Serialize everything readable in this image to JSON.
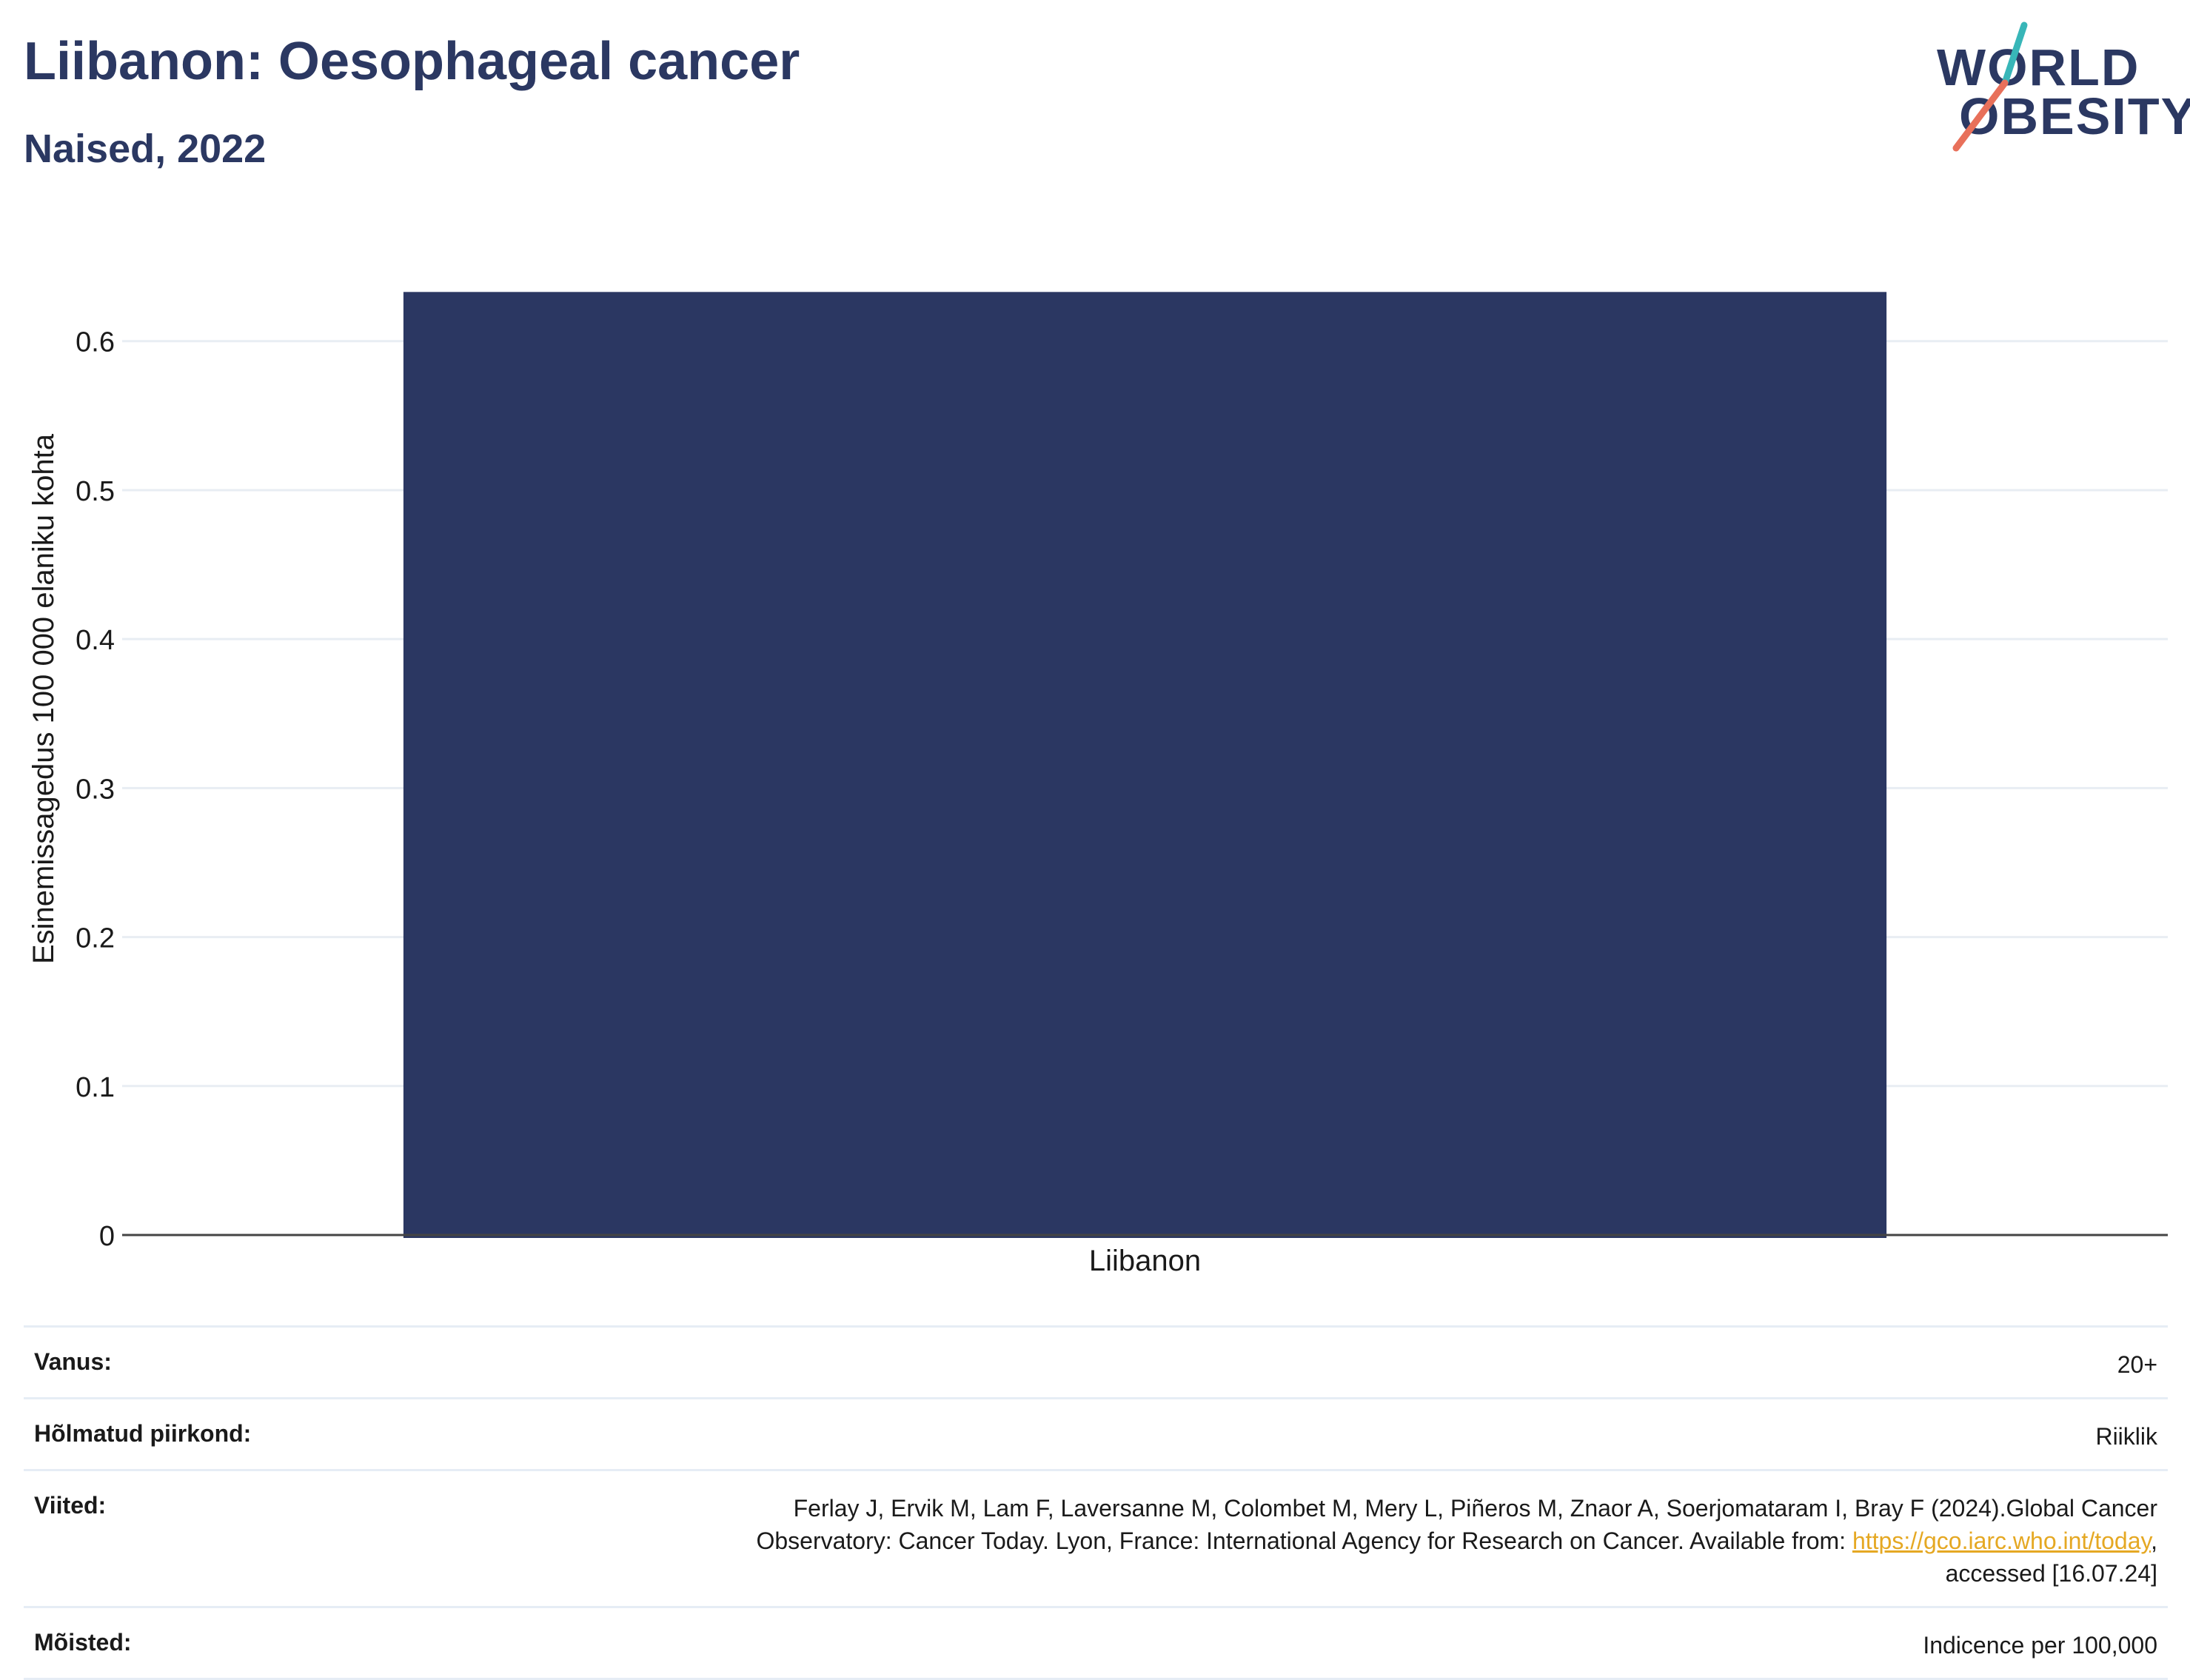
{
  "header": {
    "title": "Liibanon: Oesophageal cancer",
    "subtitle": "Naised, 2022"
  },
  "logo": {
    "line1": "WORLD",
    "line2": "OBESITY",
    "accent_colors": [
      "#38b6b8",
      "#e8705a"
    ]
  },
  "chart_data": {
    "type": "bar",
    "categories": [
      "Liibanon"
    ],
    "values": [
      0.633
    ],
    "ylabel": "Esinemissagedus 100 000 elaniku kohta",
    "xlabel": "",
    "ylim": [
      0,
      0.66
    ],
    "yticks": [
      0,
      0.1,
      0.2,
      0.3,
      0.4,
      0.5,
      0.6
    ],
    "ytick_labels": [
      "0",
      "0.1",
      "0.2",
      "0.3",
      "0.4",
      "0.5",
      "0.6"
    ],
    "grid": true,
    "bar_color": "#2b3762"
  },
  "footer": {
    "rows": [
      {
        "label": "Vanus:",
        "value": "20+"
      },
      {
        "label": "Hõlmatud piirkond:",
        "value": "Riiklik"
      },
      {
        "label": "Viited:",
        "value_line1": "Ferlay J, Ervik M, Lam F, Laversanne M, Colombet M, Mery L, Piñeros M, Znaor A, Soerjomataram I, Bray F (2024).Global Cancer",
        "value_line2_pre": "Observatory: Cancer Today. Lyon, France: International Agency for Research on Cancer. Available from: ",
        "link_text": "https://gco.iarc.who.int/today",
        "value_line2_post": ",",
        "value_line3": "accessed [16.07.24]"
      },
      {
        "label": "Mõisted:",
        "value": "Indicence per 100,000"
      }
    ]
  }
}
